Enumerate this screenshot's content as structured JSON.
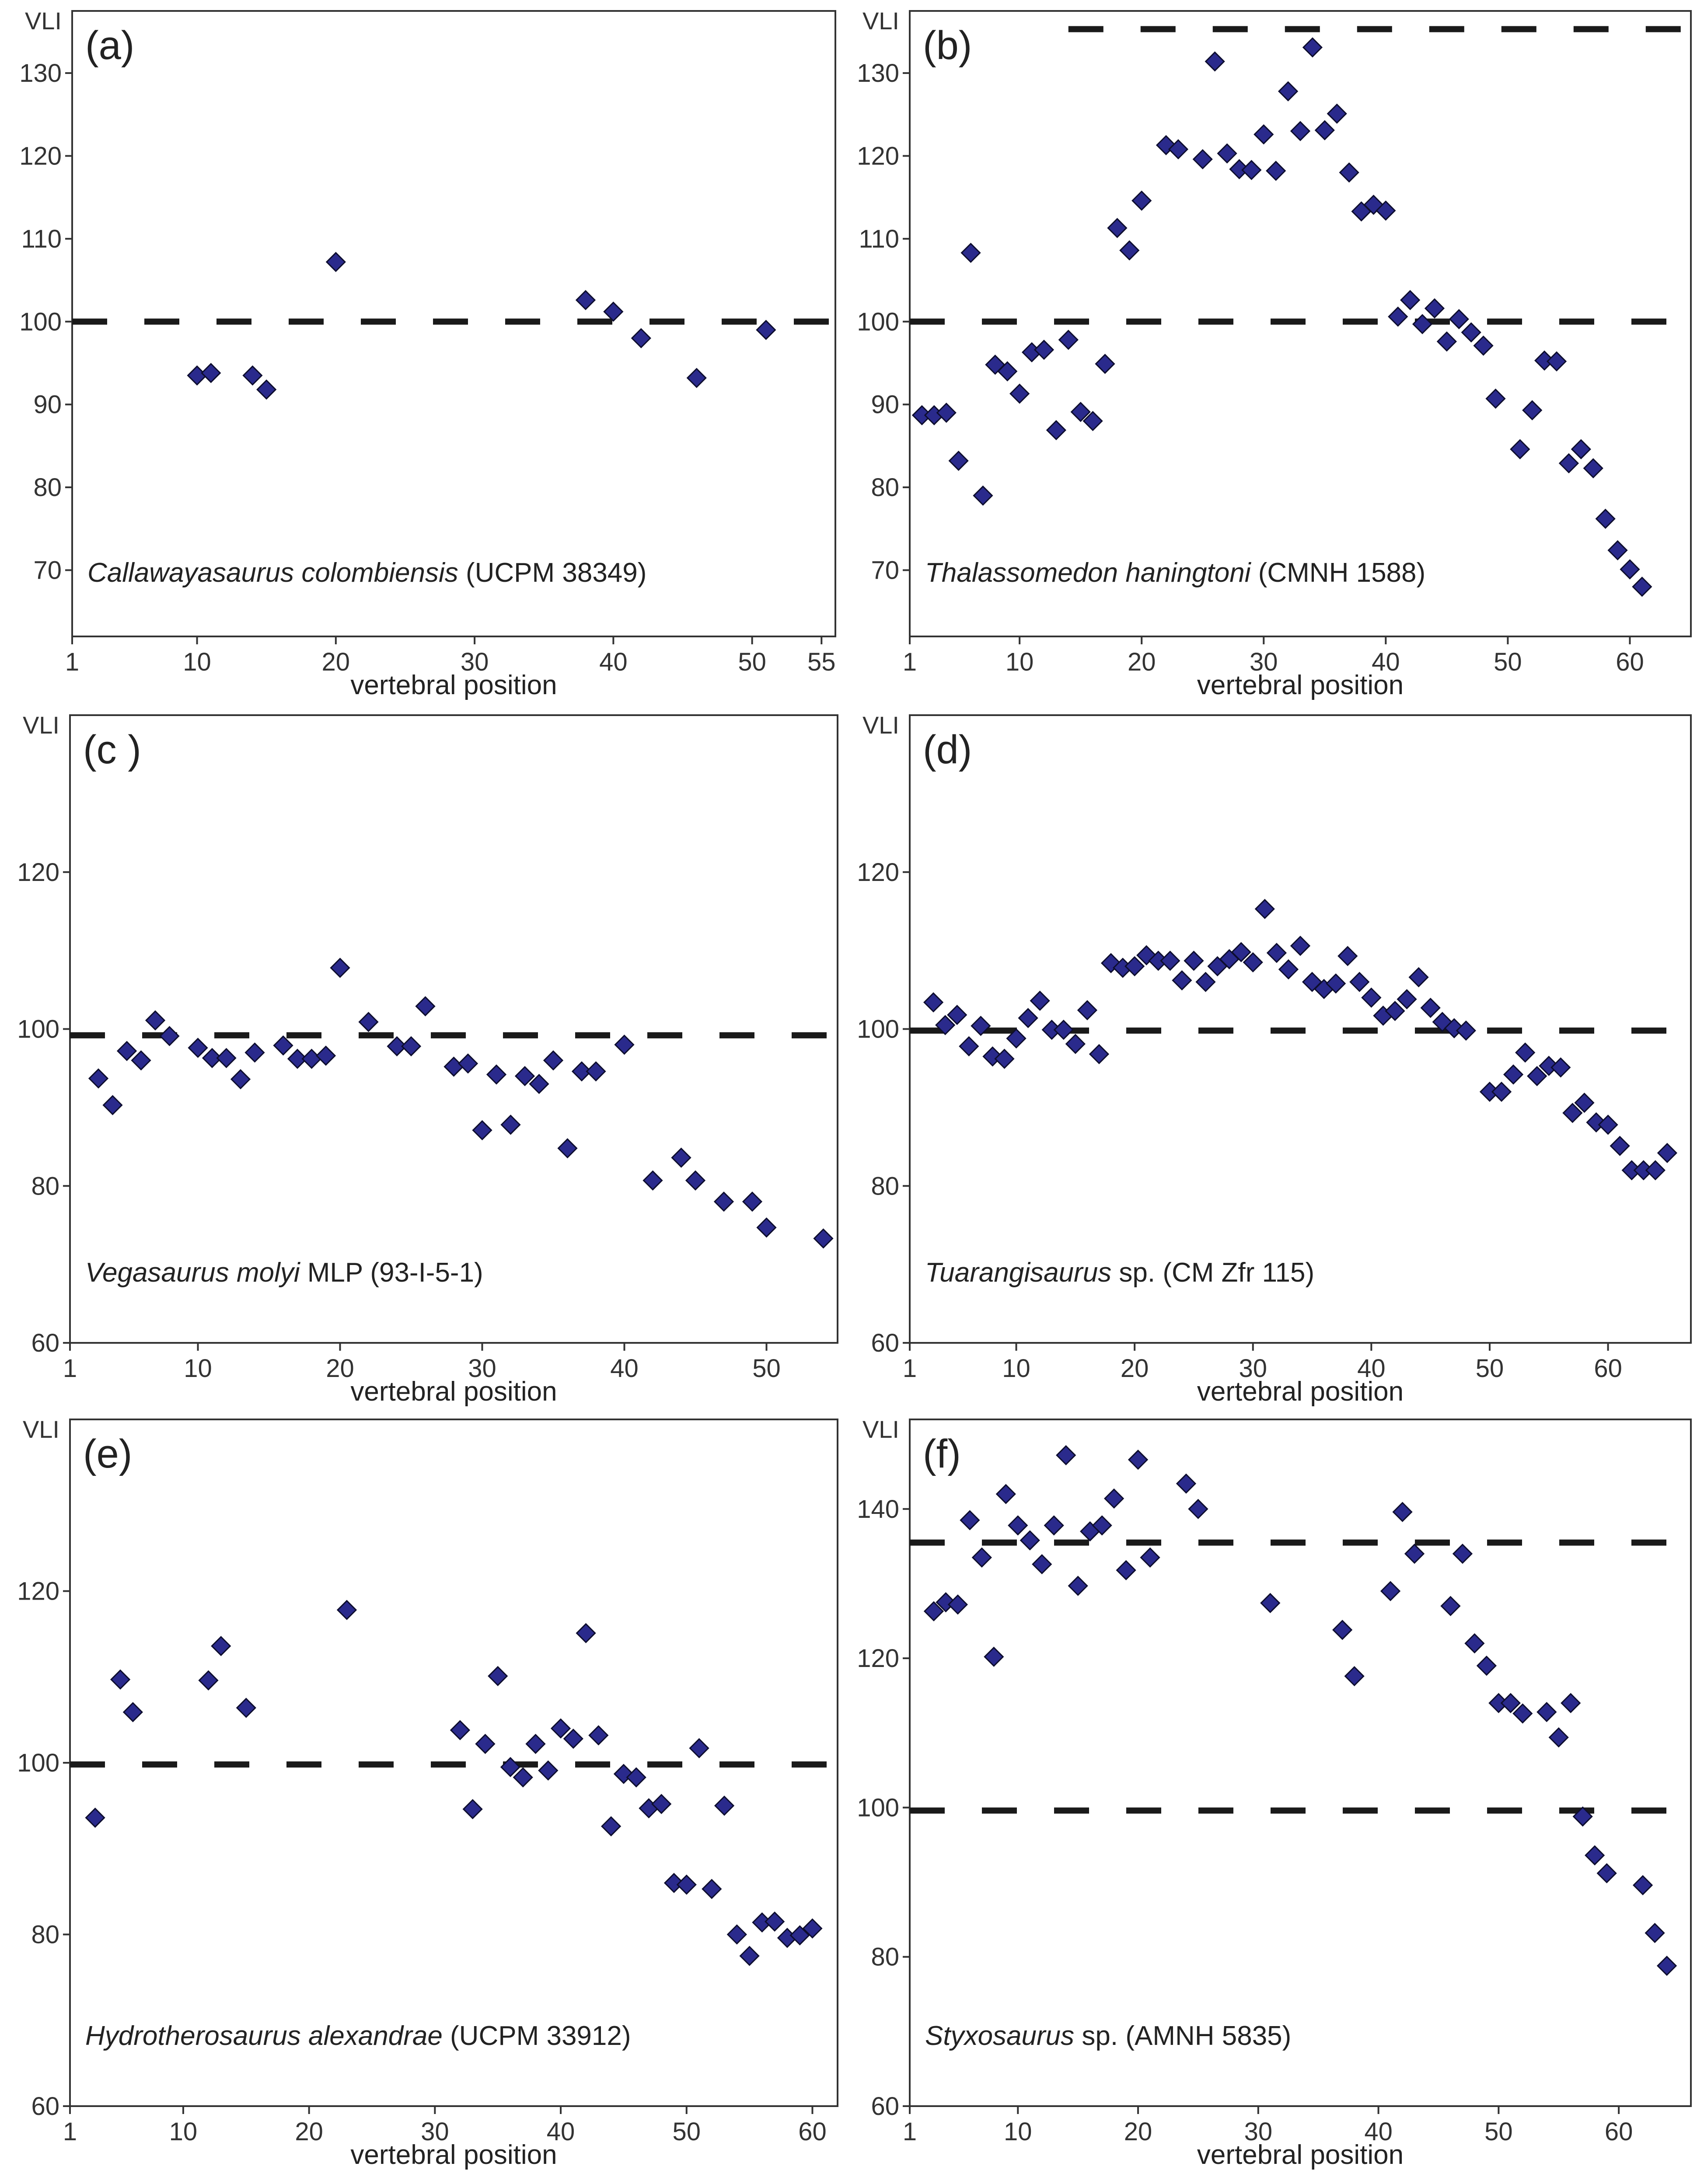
{
  "chart_data": [
    {
      "type": "scatter",
      "panel_label": "(a)",
      "ylabel": "VLI",
      "xlabel": "vertebral position",
      "caption_taxon": "Callawayasaurus colombiensis",
      "caption_rest": " (UCPM 38349)",
      "xlim": [
        1,
        56
      ],
      "ylim": [
        62,
        137.5
      ],
      "xticks": [
        1,
        10,
        20,
        30,
        40,
        50,
        55
      ],
      "yticks": [
        70,
        80,
        90,
        100,
        110,
        120,
        130
      ],
      "reference_lines": [
        {
          "y": 100,
          "x_from": 1,
          "x_to": 56
        }
      ],
      "points": [
        [
          10,
          93.5
        ],
        [
          11,
          93.8
        ],
        [
          14,
          93.5
        ],
        [
          15,
          91.8
        ],
        [
          20,
          107.2
        ],
        [
          38,
          102.6
        ],
        [
          40,
          101.2
        ],
        [
          42,
          98
        ],
        [
          46,
          93.2
        ],
        [
          51,
          99
        ]
      ]
    },
    {
      "type": "scatter",
      "panel_label": "(b)",
      "ylabel": "VLI",
      "xlabel": "vertebral position",
      "caption_taxon": "Thalassomedon haningtoni",
      "caption_rest": " (CMNH 1588)",
      "xlim": [
        1,
        65
      ],
      "ylim": [
        62,
        137.5
      ],
      "xticks": [
        1,
        10,
        20,
        30,
        40,
        50,
        60
      ],
      "yticks": [
        70,
        80,
        90,
        100,
        110,
        120,
        130
      ],
      "reference_lines": [
        {
          "y": 100,
          "x_from": 1,
          "x_to": 65
        },
        {
          "y": 135.3,
          "x_from": 14,
          "x_to": 65
        }
      ],
      "points": [
        [
          2,
          88.7
        ],
        [
          3,
          88.7
        ],
        [
          4,
          89
        ],
        [
          5,
          83.2
        ],
        [
          6,
          108.3
        ],
        [
          7,
          79
        ],
        [
          8,
          94.8
        ],
        [
          9,
          94
        ],
        [
          10,
          91.3
        ],
        [
          11,
          96.3
        ],
        [
          12,
          96.6
        ],
        [
          13,
          86.9
        ],
        [
          14,
          97.8
        ],
        [
          15,
          89.1
        ],
        [
          16,
          88
        ],
        [
          17,
          94.9
        ],
        [
          18,
          111.3
        ],
        [
          19,
          108.6
        ],
        [
          20,
          114.6
        ],
        [
          22,
          121.3
        ],
        [
          23,
          120.8
        ],
        [
          25,
          119.6
        ],
        [
          26,
          131.4
        ],
        [
          27,
          120.3
        ],
        [
          28,
          118.4
        ],
        [
          29,
          118.3
        ],
        [
          30,
          122.6
        ],
        [
          31,
          118.2
        ],
        [
          32,
          127.8
        ],
        [
          33,
          123
        ],
        [
          34,
          133.1
        ],
        [
          35,
          123.1
        ],
        [
          36,
          125.1
        ],
        [
          37,
          118
        ],
        [
          38,
          113.3
        ],
        [
          39,
          114.1
        ],
        [
          40,
          113.4
        ],
        [
          41,
          100.6
        ],
        [
          42,
          102.6
        ],
        [
          43,
          99.7
        ],
        [
          44,
          101.6
        ],
        [
          45,
          97.6
        ],
        [
          46,
          100.3
        ],
        [
          47,
          98.7
        ],
        [
          48,
          97.1
        ],
        [
          49,
          90.7
        ],
        [
          51,
          84.6
        ],
        [
          52,
          89.3
        ],
        [
          53,
          95.3
        ],
        [
          54,
          95.2
        ],
        [
          55,
          82.9
        ],
        [
          56,
          84.6
        ],
        [
          57,
          82.3
        ],
        [
          58,
          76.2
        ],
        [
          59,
          72.4
        ],
        [
          60,
          70.1
        ],
        [
          61,
          68
        ]
      ]
    },
    {
      "type": "scatter",
      "panel_label": "(c )",
      "ylabel": "VLI",
      "xlabel": "vertebral position",
      "caption_taxon": "Vegasaurus molyi",
      "caption_rest": " MLP (93-I-5-1)",
      "xlim": [
        1,
        55
      ],
      "ylim": [
        60,
        140
      ],
      "xticks": [
        1,
        10,
        20,
        30,
        40,
        50
      ],
      "yticks": [
        60,
        80,
        100,
        120
      ],
      "reference_lines": [
        {
          "y": 99.2,
          "x_from": 1,
          "x_to": 55
        }
      ],
      "points": [
        [
          3,
          93.7
        ],
        [
          4,
          90.3
        ],
        [
          5,
          97.2
        ],
        [
          6,
          96
        ],
        [
          7,
          101.1
        ],
        [
          8,
          99.1
        ],
        [
          10,
          97.6
        ],
        [
          11,
          96.3
        ],
        [
          12,
          96.3
        ],
        [
          13,
          93.6
        ],
        [
          14,
          97
        ],
        [
          16,
          97.9
        ],
        [
          17,
          96.2
        ],
        [
          18,
          96.2
        ],
        [
          19,
          96.6
        ],
        [
          20,
          107.8
        ],
        [
          22,
          100.9
        ],
        [
          24,
          97.8
        ],
        [
          25,
          97.8
        ],
        [
          26,
          102.9
        ],
        [
          28,
          95.2
        ],
        [
          29,
          95.6
        ],
        [
          30,
          87.1
        ],
        [
          31,
          94.2
        ],
        [
          32,
          87.8
        ],
        [
          33,
          94
        ],
        [
          34,
          93
        ],
        [
          35,
          96
        ],
        [
          36,
          84.8
        ],
        [
          37,
          94.6
        ],
        [
          38,
          94.6
        ],
        [
          40,
          98
        ],
        [
          42,
          80.7
        ],
        [
          44,
          83.6
        ],
        [
          45,
          80.7
        ],
        [
          47,
          78
        ],
        [
          49,
          78
        ],
        [
          50,
          74.7
        ],
        [
          54,
          73.3
        ]
      ]
    },
    {
      "type": "scatter",
      "panel_label": "(d)",
      "ylabel": "VLI",
      "xlabel": "vertebral position",
      "caption_taxon": "Tuarangisaurus",
      "caption_rest": " sp. (CM Zfr 115)",
      "xlim": [
        1,
        67
      ],
      "ylim": [
        60,
        140
      ],
      "xticks": [
        1,
        10,
        20,
        30,
        40,
        50,
        60
      ],
      "yticks": [
        60,
        80,
        100,
        120
      ],
      "reference_lines": [
        {
          "y": 99.8,
          "x_from": 1,
          "x_to": 67
        }
      ],
      "points": [
        [
          3,
          103.4
        ],
        [
          4,
          100.5
        ],
        [
          5,
          101.8
        ],
        [
          6,
          97.8
        ],
        [
          7,
          100.4
        ],
        [
          8,
          96.5
        ],
        [
          9,
          96.2
        ],
        [
          10,
          98.8
        ],
        [
          11,
          101.4
        ],
        [
          12,
          103.6
        ],
        [
          13,
          99.9
        ],
        [
          14,
          99.9
        ],
        [
          15,
          98.1
        ],
        [
          16,
          102.4
        ],
        [
          17,
          96.8
        ],
        [
          18,
          108.4
        ],
        [
          19,
          107.8
        ],
        [
          20,
          108
        ],
        [
          21,
          109.4
        ],
        [
          22,
          108.7
        ],
        [
          23,
          108.7
        ],
        [
          24,
          106.2
        ],
        [
          25,
          108.7
        ],
        [
          26,
          106
        ],
        [
          27,
          108
        ],
        [
          28,
          108.9
        ],
        [
          29,
          109.8
        ],
        [
          30,
          108.5
        ],
        [
          31,
          115.3
        ],
        [
          32,
          109.7
        ],
        [
          33,
          107.6
        ],
        [
          34,
          110.6
        ],
        [
          35,
          106
        ],
        [
          36,
          105.1
        ],
        [
          37,
          105.8
        ],
        [
          38,
          109.3
        ],
        [
          39,
          106
        ],
        [
          40,
          104
        ],
        [
          41,
          101.7
        ],
        [
          42,
          102.3
        ],
        [
          43,
          103.8
        ],
        [
          44,
          106.6
        ],
        [
          45,
          102.7
        ],
        [
          46,
          100.9
        ],
        [
          47,
          100.1
        ],
        [
          48,
          99.8
        ],
        [
          50,
          92
        ],
        [
          51,
          92
        ],
        [
          52,
          94.2
        ],
        [
          53,
          97
        ],
        [
          54,
          94
        ],
        [
          55,
          95.3
        ],
        [
          56,
          95.1
        ],
        [
          57,
          89.3
        ],
        [
          58,
          90.6
        ],
        [
          59,
          88.1
        ],
        [
          60,
          87.8
        ],
        [
          61,
          85.1
        ],
        [
          62,
          82
        ],
        [
          63,
          82
        ],
        [
          64,
          82
        ],
        [
          65,
          84.2
        ]
      ]
    },
    {
      "type": "scatter",
      "panel_label": "(e)",
      "ylabel": "VLI",
      "xlabel": "vertebral position",
      "caption_taxon": "Hydrotherosaurus alexandrae",
      "caption_rest": " (UCPM 33912)",
      "xlim": [
        1,
        62
      ],
      "ylim": [
        60,
        140
      ],
      "xticks": [
        1,
        10,
        20,
        30,
        40,
        50,
        60
      ],
      "yticks": [
        60,
        80,
        100,
        120
      ],
      "reference_lines": [
        {
          "y": 99.8,
          "x_from": 1,
          "x_to": 62
        }
      ],
      "points": [
        [
          3,
          93.6
        ],
        [
          5,
          109.7
        ],
        [
          6,
          105.9
        ],
        [
          12,
          109.6
        ],
        [
          13,
          113.6
        ],
        [
          15,
          106.4
        ],
        [
          23,
          117.8
        ],
        [
          32,
          103.8
        ],
        [
          33,
          94.6
        ],
        [
          34,
          102.2
        ],
        [
          35,
          110.1
        ],
        [
          36,
          99.5
        ],
        [
          37,
          98.3
        ],
        [
          38,
          102.2
        ],
        [
          39,
          99.1
        ],
        [
          40,
          104
        ],
        [
          41,
          102.8
        ],
        [
          42,
          115.1
        ],
        [
          43,
          103.2
        ],
        [
          44,
          92.6
        ],
        [
          45,
          98.7
        ],
        [
          46,
          98.3
        ],
        [
          47,
          94.7
        ],
        [
          48,
          95.2
        ],
        [
          49,
          86
        ],
        [
          50,
          85.8
        ],
        [
          51,
          101.7
        ],
        [
          52,
          85.3
        ],
        [
          53,
          95
        ],
        [
          54,
          80
        ],
        [
          55,
          77.5
        ],
        [
          56,
          81.4
        ],
        [
          57,
          81.5
        ],
        [
          58,
          79.6
        ],
        [
          59,
          79.9
        ],
        [
          60,
          80.7
        ]
      ]
    },
    {
      "type": "scatter",
      "panel_label": "(f)",
      "ylabel": "VLI",
      "xlabel": "vertebral position",
      "caption_taxon": "Styxosaurus",
      "caption_rest": " sp. (AMNH 5835)",
      "xlim": [
        1,
        66
      ],
      "ylim": [
        60,
        152
      ],
      "xticks": [
        1,
        10,
        20,
        30,
        40,
        50,
        60
      ],
      "yticks": [
        60,
        80,
        100,
        120,
        140
      ],
      "reference_lines": [
        {
          "y": 99.6,
          "x_from": 1,
          "x_to": 66
        },
        {
          "y": 135.5,
          "x_from": 1,
          "x_to": 66
        }
      ],
      "points": [
        [
          3,
          126.3
        ],
        [
          4,
          127.5
        ],
        [
          5,
          127.2
        ],
        [
          6,
          138.5
        ],
        [
          7,
          133.5
        ],
        [
          8,
          120.2
        ],
        [
          9,
          142
        ],
        [
          10,
          137.8
        ],
        [
          11,
          135.8
        ],
        [
          12,
          132.6
        ],
        [
          13,
          137.8
        ],
        [
          14,
          147.2
        ],
        [
          15,
          129.7
        ],
        [
          16,
          137
        ],
        [
          17,
          137.8
        ],
        [
          18,
          141.4
        ],
        [
          19,
          131.8
        ],
        [
          20,
          146.6
        ],
        [
          21,
          133.5
        ],
        [
          24,
          143.4
        ],
        [
          25,
          140
        ],
        [
          31,
          127.4
        ],
        [
          37,
          123.8
        ],
        [
          38,
          117.6
        ],
        [
          41,
          129
        ],
        [
          42,
          139.6
        ],
        [
          43,
          134
        ],
        [
          46,
          127
        ],
        [
          47,
          134
        ],
        [
          48,
          122
        ],
        [
          49,
          119
        ],
        [
          50,
          114
        ],
        [
          51,
          114
        ],
        [
          52,
          112.6
        ],
        [
          54,
          112.8
        ],
        [
          55,
          109.4
        ],
        [
          56,
          114
        ],
        [
          57,
          98.8
        ],
        [
          58,
          93.6
        ],
        [
          59,
          91.2
        ],
        [
          62,
          89.6
        ],
        [
          63,
          83.2
        ],
        [
          64,
          78.8
        ]
      ]
    }
  ]
}
